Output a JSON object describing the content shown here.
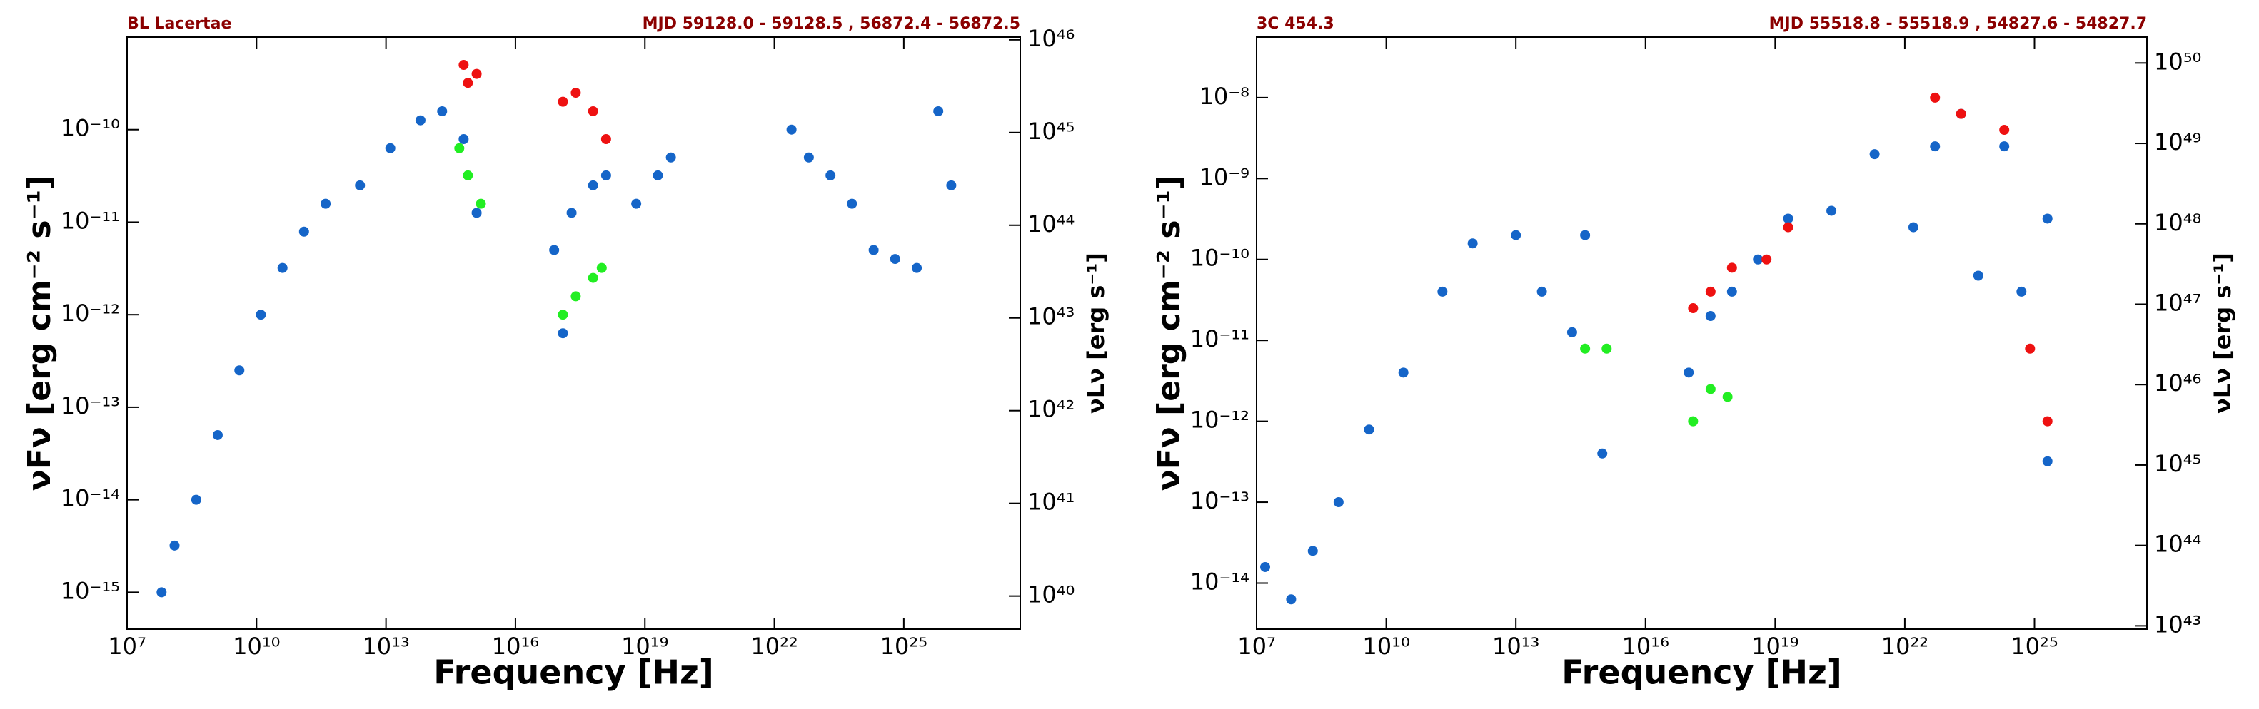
{
  "chart_data": [
    {
      "type": "scatter",
      "title": "BL Lacertae",
      "subtitle": "MJD  59128.0 - 59128.5 , 56872.4 - 56872.5",
      "x_label": "Frequency [Hz]",
      "y_label": "νFν [erg cm⁻² s⁻¹]",
      "y2_label": "νLν [erg s⁻¹]",
      "xscale": "log",
      "yscale": "log",
      "y2scale": "log",
      "xlim": [
        10000000.0,
        5e+27
      ],
      "ylim": [
        4e-16,
        1e-09
      ],
      "y2lim": [
        4.4e+39,
        1.07e+46
      ],
      "xticks": [
        {
          "value": 10000000.0,
          "label": "10⁷"
        },
        {
          "value": 10000000000.0,
          "label": "10¹⁰"
        },
        {
          "value": 10000000000000.0,
          "label": "10¹³"
        },
        {
          "value": 1e+16,
          "label": "10¹⁶"
        },
        {
          "value": 1e+19,
          "label": "10¹⁹"
        },
        {
          "value": 1e+22,
          "label": "10²²"
        },
        {
          "value": 1e+25,
          "label": "10²⁵"
        }
      ],
      "yticks": [
        {
          "value": 1e-15,
          "label": "10⁻¹⁵"
        },
        {
          "value": 1e-14,
          "label": "10⁻¹⁴"
        },
        {
          "value": 1e-13,
          "label": "10⁻¹³"
        },
        {
          "value": 1e-12,
          "label": "10⁻¹²"
        },
        {
          "value": 1e-11,
          "label": "10⁻¹¹"
        },
        {
          "value": 1e-10,
          "label": "10⁻¹⁰"
        }
      ],
      "y2ticks": [
        {
          "value": 1e+40,
          "label": "10⁴⁰"
        },
        {
          "value": 1e+41,
          "label": "10⁴¹"
        },
        {
          "value": 1e+42,
          "label": "10⁴²"
        },
        {
          "value": 1e+43,
          "label": "10⁴³"
        },
        {
          "value": 1e+44,
          "label": "10⁴⁴"
        },
        {
          "value": 1e+45,
          "label": "10⁴⁵"
        },
        {
          "value": 1e+46,
          "label": "10⁴⁶"
        }
      ],
      "series": [
        {
          "color": "#1565c8",
          "x": [
            63000000.0,
            126000000.0,
            400000000.0,
            1260000000.0,
            4000000000.0,
            12600000000.0,
            40000000000.0,
            126000000000.0,
            400000000000.0,
            2500000000000.0,
            12600000000000.0,
            63000000000000.0,
            200000000000000.0,
            630000000000000.0,
            1260000000000000.0,
            7.9e+16,
            1.26e+17,
            2e+17,
            6.3e+17,
            1.26e+18,
            6.3e+18,
            2e+19,
            4e+19,
            2.5e+22,
            6.3e+22,
            2e+23,
            6.3e+23,
            2e+24,
            6.3e+24,
            2e+25,
            6.3e+25,
            1.26e+26
          ],
          "values": [
            1e-15,
            3.2e-15,
            1e-14,
            5e-14,
            2.5e-13,
            1e-12,
            3.2e-12,
            7.9e-12,
            1.58e-11,
            2.5e-11,
            6.3e-11,
            1.26e-10,
            1.58e-10,
            7.9e-11,
            1.26e-11,
            5e-12,
            6.3e-13,
            1.26e-11,
            2.5e-11,
            3.2e-11,
            1.58e-11,
            3.2e-11,
            5e-11,
            1e-10,
            5e-11,
            3.2e-11,
            1.58e-11,
            5e-12,
            4e-12,
            3.2e-12,
            1.58e-10,
            2.5e-11
          ]
        },
        {
          "color": "#ee1111",
          "x": [
            630000000000000.0,
            790000000000000.0,
            1260000000000000.0,
            1.26e+17,
            2.5e+17,
            6.3e+17,
            1.26e+18
          ],
          "values": [
            5e-10,
            3.2e-10,
            4e-10,
            2e-10,
            2.5e-10,
            1.58e-10,
            7.9e-11
          ]
        },
        {
          "color": "#22ee22",
          "x": [
            500000000000000.0,
            790000000000000.0,
            1580000000000000.0,
            1.26e+17,
            2.5e+17,
            6.3e+17,
            1e+18
          ],
          "values": [
            6.3e-11,
            3.2e-11,
            1.58e-11,
            1e-12,
            1.58e-12,
            2.5e-12,
            3.2e-12
          ]
        }
      ]
    },
    {
      "type": "scatter",
      "title": "3C 454.3",
      "subtitle": "MJD  55518.8 - 55518.9 , 54827.6 - 54827.7",
      "x_label": "Frequency [Hz]",
      "y_label": "νFν [erg cm⁻² s⁻¹]",
      "y2_label": "νLν [erg s⁻¹]",
      "xscale": "log",
      "yscale": "log",
      "y2scale": "log",
      "xlim": [
        10000000.0,
        4e+27
      ],
      "ylim": [
        2.7e-15,
        5.6e-08
      ],
      "y2lim": [
        9.1e+42,
        2.1e+50
      ],
      "xticks": [
        {
          "value": 10000000.0,
          "label": "10⁷"
        },
        {
          "value": 10000000000.0,
          "label": "10¹⁰"
        },
        {
          "value": 10000000000000.0,
          "label": "10¹³"
        },
        {
          "value": 1e+16,
          "label": "10¹⁶"
        },
        {
          "value": 1e+19,
          "label": "10¹⁹"
        },
        {
          "value": 1e+22,
          "label": "10²²"
        },
        {
          "value": 1e+25,
          "label": "10²⁵"
        }
      ],
      "yticks": [
        {
          "value": 1e-14,
          "label": "10⁻¹⁴"
        },
        {
          "value": 1e-13,
          "label": "10⁻¹³"
        },
        {
          "value": 1e-12,
          "label": "10⁻¹²"
        },
        {
          "value": 1e-11,
          "label": "10⁻¹¹"
        },
        {
          "value": 1e-10,
          "label": "10⁻¹⁰"
        },
        {
          "value": 1e-09,
          "label": "10⁻⁹"
        },
        {
          "value": 1e-08,
          "label": "10⁻⁸"
        }
      ],
      "y2ticks": [
        {
          "value": 1e+43,
          "label": "10⁴³"
        },
        {
          "value": 1e+44,
          "label": "10⁴⁴"
        },
        {
          "value": 1e+45,
          "label": "10⁴⁵"
        },
        {
          "value": 1e+46,
          "label": "10⁴⁶"
        },
        {
          "value": 1e+47,
          "label": "10⁴⁷"
        },
        {
          "value": 1e+48,
          "label": "10⁴⁸"
        },
        {
          "value": 1e+49,
          "label": "10⁴⁹"
        },
        {
          "value": 1e+50,
          "label": "10⁵⁰"
        }
      ],
      "series": [
        {
          "color": "#1565c8",
          "x": [
            15800000.0,
            63000000.0,
            200000000.0,
            790000000.0,
            4000000000.0,
            25000000000.0,
            200000000000.0,
            1000000000000.0,
            10000000000000.0,
            40000000000000.0,
            200000000000000.0,
            400000000000000.0,
            1000000000000000.0,
            1e+17,
            3.2e+17,
            1e+18,
            4e+18,
            2e+19,
            2e+20,
            2e+21,
            1.58e+22,
            5e+22,
            2e+23,
            5e+23,
            2e+24,
            5e+24,
            2e+25,
            2e+25
          ],
          "values": [
            1.58e-14,
            6.3e-15,
            2.5e-14,
            1e-13,
            7.9e-13,
            4e-12,
            4e-11,
            1.58e-10,
            2e-10,
            4e-11,
            1.26e-11,
            2e-10,
            4e-13,
            4e-12,
            2e-11,
            4e-11,
            1e-10,
            3.2e-10,
            4e-10,
            2e-09,
            2.5e-10,
            2.5e-09,
            6.3e-09,
            6.3e-11,
            2.5e-09,
            4e-11,
            3.2e-10,
            3.2e-13
          ]
        },
        {
          "color": "#ee1111",
          "x": [
            1.26e+17,
            3.2e+17,
            1e+18,
            6.3e+18,
            2e+19,
            5e+22,
            2e+23,
            2e+24,
            7.9e+24,
            2e+25
          ],
          "values": [
            2.5e-11,
            4e-11,
            7.9e-11,
            1e-10,
            2.5e-10,
            1e-08,
            6.3e-09,
            4e-09,
            7.9e-12,
            1e-12
          ]
        },
        {
          "color": "#22ee22",
          "x": [
            400000000000000.0,
            1260000000000000.0,
            1.26e+17,
            3.2e+17,
            7.9e+17
          ],
          "values": [
            7.9e-12,
            7.9e-12,
            1e-12,
            2.5e-12,
            2e-12
          ]
        }
      ]
    }
  ]
}
